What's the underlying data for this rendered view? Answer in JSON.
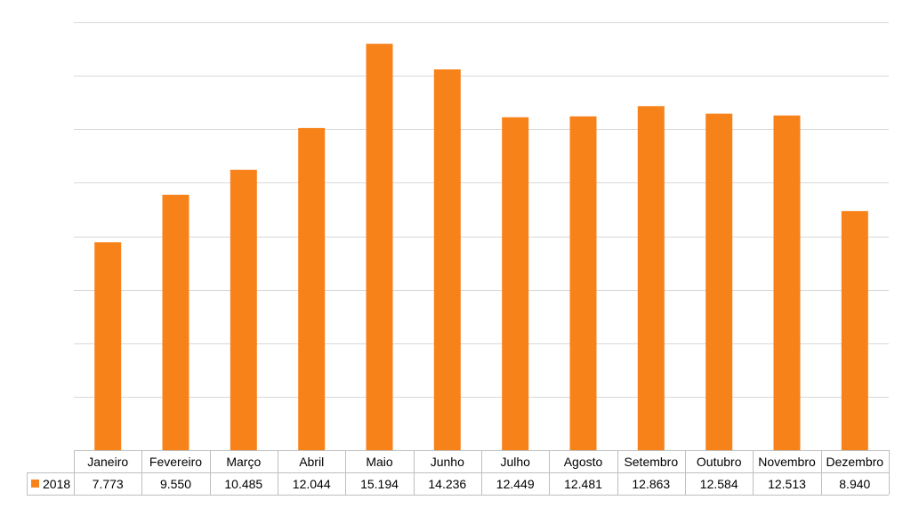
{
  "chart_data": {
    "type": "bar",
    "title": "",
    "xlabel": "",
    "ylabel": "",
    "ylim": [
      0,
      16000
    ],
    "gridlines": true,
    "legend_placement": "data-table-left",
    "categories": [
      "Janeiro",
      "Fevereiro",
      "Março",
      "Abril",
      "Maio",
      "Junho",
      "Julho",
      "Agosto",
      "Setembro",
      "Outubro",
      "Novembro",
      "Dezembro"
    ],
    "series": [
      {
        "name": "2018",
        "color": "#F8821A",
        "values": [
          7773,
          9550,
          10485,
          12044,
          15194,
          14236,
          12449,
          12481,
          12863,
          12584,
          12513,
          8940
        ],
        "labels": [
          "7.773",
          "9.550",
          "10.485",
          "12.044",
          "15.194",
          "14.236",
          "12.449",
          "12.481",
          "12.863",
          "12.584",
          "12.513",
          "8.940"
        ]
      }
    ],
    "colors": {
      "gridline": "#D9D9D9",
      "table_border": "#BFBFBF",
      "text": "#000000"
    }
  }
}
